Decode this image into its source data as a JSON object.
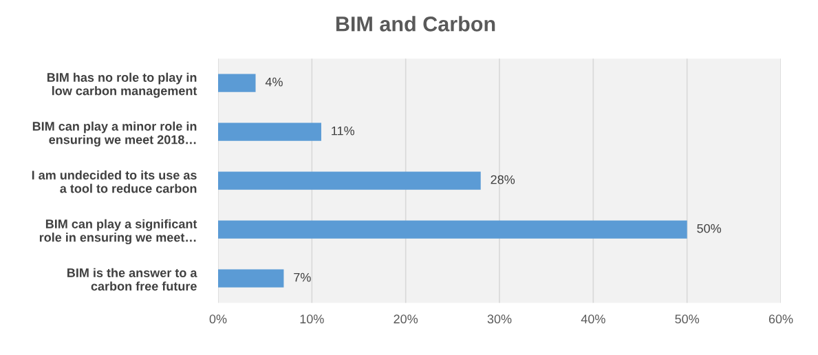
{
  "chart_data": {
    "type": "bar",
    "orientation": "horizontal",
    "title": "BIM and Carbon",
    "categories": [
      "BIM has no role to play in\nlow carbon management",
      "BIM can play a minor role in\nensuring we meet 2018…",
      "I am undecided to its use as\na tool to reduce carbon",
      "BIM can play a significant\nrole in ensuring we meet…",
      "BIM is the answer to a\ncarbon free future"
    ],
    "values": [
      4,
      11,
      28,
      50,
      7
    ],
    "value_labels": [
      "4%",
      "11%",
      "28%",
      "50%",
      "7%"
    ],
    "color": "#5b9bd5",
    "xlim": [
      0,
      60
    ],
    "xticks": [
      {
        "value": 0,
        "label": "0%"
      },
      {
        "value": 10,
        "label": "10%"
      },
      {
        "value": 20,
        "label": "20%"
      },
      {
        "value": 30,
        "label": "30%"
      },
      {
        "value": 40,
        "label": "40%"
      },
      {
        "value": 50,
        "label": "50%"
      },
      {
        "value": 60,
        "label": "60%"
      }
    ],
    "grid": "x"
  }
}
